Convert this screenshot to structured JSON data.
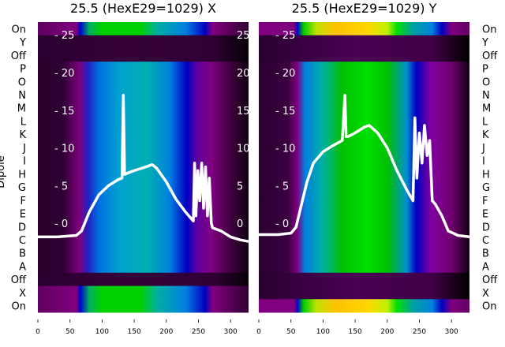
{
  "chart_data": {
    "type": "heatmap",
    "ylabel": "Dipole",
    "rows": [
      "On",
      "Y",
      "Off",
      "P",
      "O",
      "N",
      "M",
      "L",
      "K",
      "J",
      "I",
      "H",
      "G",
      "F",
      "E",
      "D",
      "C",
      "B",
      "A",
      "Off",
      "X",
      "On"
    ],
    "xticks": [
      0,
      50,
      100,
      150,
      200,
      250,
      300
    ],
    "xlim": [
      0,
      328
    ],
    "inner_yticks": [
      0,
      5,
      10,
      15,
      20,
      25
    ],
    "inner_ylim": [
      -11.8,
      26.7
    ],
    "panels": [
      {
        "title": "25.5 (HexE29=1029) X",
        "row_types": [
          "on",
          "dark",
          "dark",
          "mid",
          "mid",
          "mid",
          "mid",
          "mid",
          "mid",
          "mid",
          "mid",
          "mid",
          "mid",
          "mid",
          "mid",
          "mid",
          "mid",
          "mid",
          "mid",
          "dark",
          "on",
          "on"
        ],
        "palettes": {
          "on": [
            [
              0,
              "#600060"
            ],
            [
              60,
              "#800080"
            ],
            [
              66,
              "#0000d0"
            ],
            [
              80,
              "#00b060"
            ],
            [
              100,
              "#00d000"
            ],
            [
              160,
              "#00d000"
            ],
            [
              185,
              "#00b0a0"
            ],
            [
              230,
              "#0080e0"
            ],
            [
              260,
              "#0000c0"
            ],
            [
              272,
              "#800080"
            ],
            [
              328,
              "#300030"
            ]
          ],
          "mid": [
            [
              0,
              "#280028"
            ],
            [
              40,
              "#300035"
            ],
            [
              55,
              "#600060"
            ],
            [
              65,
              "#800080"
            ],
            [
              78,
              "#2020c0"
            ],
            [
              95,
              "#0070e0"
            ],
            [
              125,
              "#00a0d0"
            ],
            [
              170,
              "#00b0b0"
            ],
            [
              205,
              "#0080e0"
            ],
            [
              232,
              "#0000c0"
            ],
            [
              248,
              "#6000a0"
            ],
            [
              270,
              "#800080"
            ],
            [
              300,
              "#400040"
            ],
            [
              328,
              "#100010"
            ]
          ],
          "dark": [
            [
              0,
              "#2a0030"
            ],
            [
              150,
              "#350038"
            ],
            [
              270,
              "#300035"
            ],
            [
              328,
              "#080008"
            ]
          ]
        },
        "series": {
          "name": "trace",
          "x": [
            0,
            30,
            60,
            68,
            80,
            95,
            110,
            125,
            131,
            133,
            135,
            138,
            150,
            165,
            178,
            185,
            200,
            215,
            230,
            242,
            244,
            246,
            249,
            252,
            255,
            258,
            261,
            264,
            267,
            270,
            272,
            285,
            300,
            315,
            328
          ],
          "y": [
            -1.8,
            -1.8,
            -1.6,
            -1,
            1.5,
            3.8,
            5,
            5.8,
            6,
            17,
            6.5,
            6.6,
            7,
            7.4,
            7.8,
            7.3,
            5.5,
            3.2,
            1.5,
            0.3,
            8,
            1,
            7,
            3,
            8,
            2,
            7.5,
            1,
            6,
            0,
            -0.6,
            -1,
            -1.8,
            -2.2,
            -2.4
          ]
        }
      },
      {
        "title": "25.5 (HexE29=1029) Y",
        "row_types": [
          "on",
          "dark",
          "dark",
          "mid",
          "mid",
          "mid",
          "mid",
          "mid",
          "mid",
          "mid",
          "mid",
          "mid",
          "mid",
          "mid",
          "mid",
          "mid",
          "mid",
          "mid",
          "mid",
          "dark",
          "dark",
          "on"
        ],
        "palettes": {
          "on": [
            [
              0,
              "#800080"
            ],
            [
              55,
              "#800080"
            ],
            [
              60,
              "#0000d0"
            ],
            [
              70,
              "#00d000"
            ],
            [
              90,
              "#c0e000"
            ],
            [
              120,
              "#ffc000"
            ],
            [
              170,
              "#ffd800"
            ],
            [
              200,
              "#c0f000"
            ],
            [
              215,
              "#00e000"
            ],
            [
              240,
              "#00a0a0"
            ],
            [
              270,
              "#0080e0"
            ],
            [
              285,
              "#0000c0"
            ],
            [
              300,
              "#800080"
            ],
            [
              328,
              "#600060"
            ]
          ],
          "mid": [
            [
              0,
              "#2a0030"
            ],
            [
              45,
              "#3a0040"
            ],
            [
              60,
              "#800080"
            ],
            [
              72,
              "#0080e0"
            ],
            [
              100,
              "#00b0a0"
            ],
            [
              130,
              "#00c000"
            ],
            [
              170,
              "#00e000"
            ],
            [
              200,
              "#00c000"
            ],
            [
              230,
              "#0090d0"
            ],
            [
              245,
              "#0000c0"
            ],
            [
              268,
              "#8000a0"
            ],
            [
              300,
              "#700070"
            ],
            [
              328,
              "#100010"
            ]
          ],
          "dark": [
            [
              0,
              "#2a0030"
            ],
            [
              150,
              "#4a0055"
            ],
            [
              270,
              "#400045"
            ],
            [
              328,
              "#000000"
            ]
          ]
        },
        "series": {
          "name": "trace",
          "x": [
            0,
            30,
            50,
            58,
            65,
            75,
            85,
            100,
            115,
            130,
            134,
            136,
            139,
            150,
            165,
            172,
            185,
            200,
            215,
            230,
            240,
            243,
            246,
            250,
            254,
            258,
            262,
            266,
            270,
            275,
            285,
            295,
            310,
            328
          ],
          "y": [
            -1.5,
            -1.5,
            -1.3,
            -0.5,
            2,
            5.5,
            8,
            9.5,
            10.3,
            11,
            17,
            11.5,
            11.5,
            12,
            12.8,
            13,
            12,
            10,
            7,
            4.5,
            3,
            14,
            6,
            12,
            8,
            13,
            9,
            11,
            3,
            2.5,
            1,
            -1,
            -1.6,
            -1.8
          ]
        }
      }
    ]
  }
}
